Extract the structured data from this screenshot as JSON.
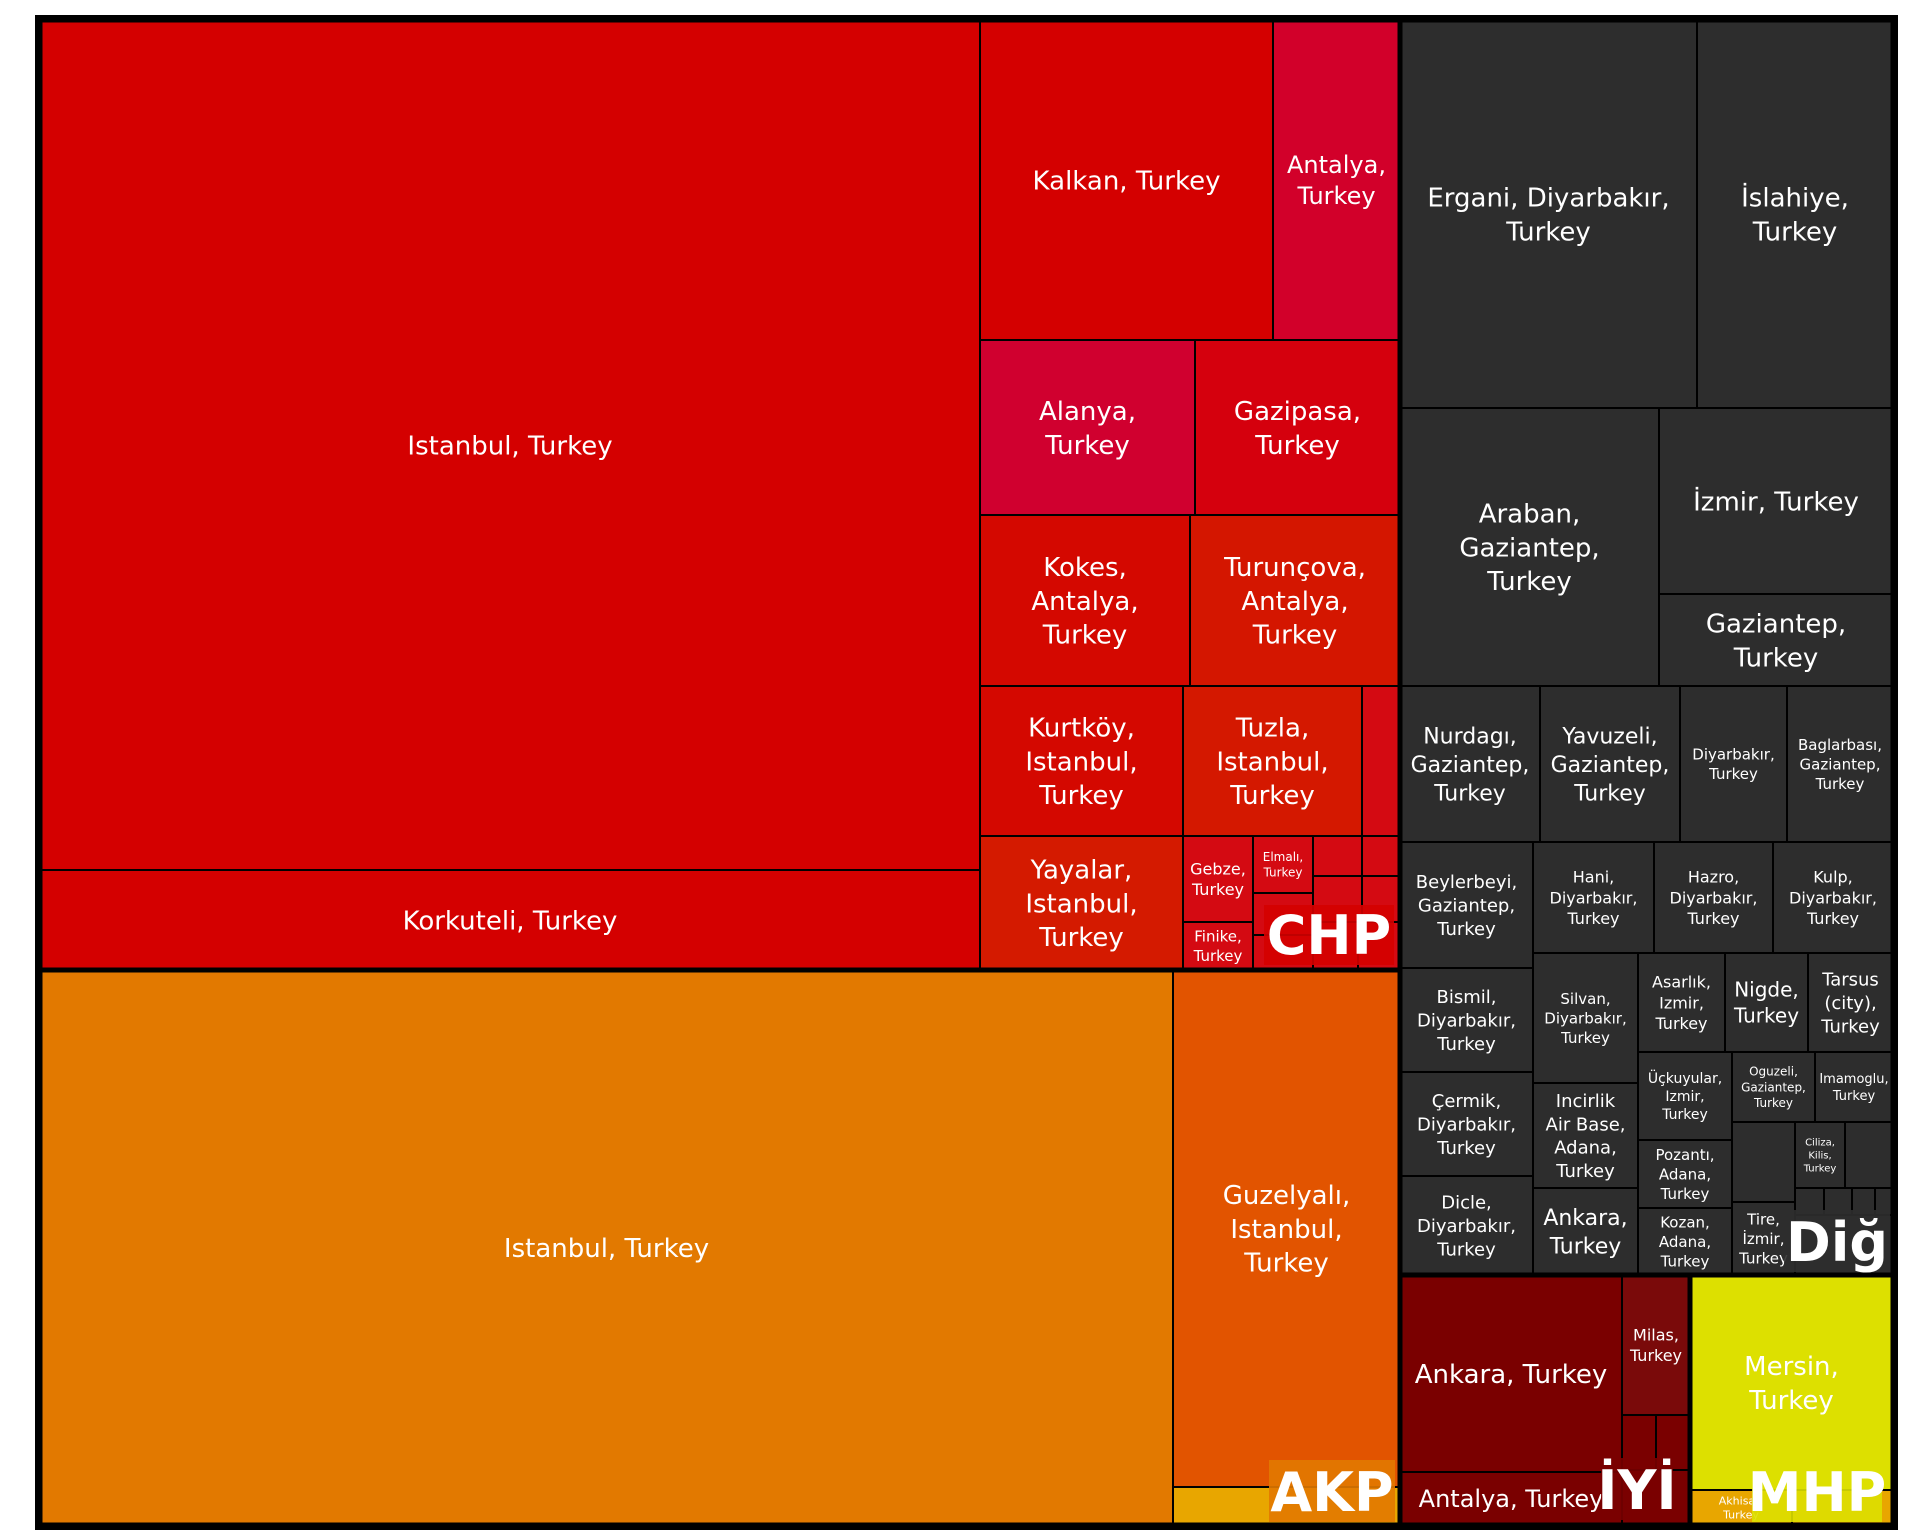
{
  "chart_data": {
    "type": "treemap",
    "groups": [
      {
        "name": "CHP",
        "color": "#d40000",
        "items": [
          {
            "label": "Istanbul, Turkey",
            "value": 53000,
            "color": "#d40000"
          },
          {
            "label": "Korkuteli, Turkey",
            "value": 5500,
            "color": "#d40000"
          },
          {
            "label": "Kalkan, Turkey",
            "value": 5800,
            "color": "#d40000"
          },
          {
            "label": "Antalya, Turkey",
            "value": 2400,
            "color": "#d2002a"
          },
          {
            "label": "Alanya, Turkey",
            "value": 2300,
            "color": "#d0002f"
          },
          {
            "label": "Gazipasa, Turkey",
            "value": 2200,
            "color": "#d5000d"
          },
          {
            "label": "Kokes, Antalya, Turkey",
            "value": 2200,
            "color": "#d40800"
          },
          {
            "label": "Turunçova, Antalya, Turkey",
            "value": 2200,
            "color": "#d41600"
          },
          {
            "label": "Kurtköy, Istanbul, Turkey",
            "value": 1950,
            "color": "#d40800"
          },
          {
            "label": "Tuzla, Istanbul, Turkey",
            "value": 1800,
            "color": "#d41800"
          },
          {
            "label": "Yayalar, Istanbul, Turkey",
            "value": 1650,
            "color": "#d41a00"
          },
          {
            "label": "Gebze, Turkey",
            "value": 320,
            "color": "#d40a12"
          },
          {
            "label": "Elmalı, Turkey",
            "value": 260,
            "color": "#d40a12"
          },
          {
            "label": "Finike, Turkey",
            "value": 220,
            "color": "#d40a12"
          }
        ]
      },
      {
        "name": "AKP",
        "color": "#e27900",
        "items": [
          {
            "label": "Istanbul, Turkey",
            "value": 55000,
            "color": "#e27900"
          },
          {
            "label": "Guzelyalı, Istanbul, Turkey",
            "value": 10800,
            "color": "#e25400"
          }
        ]
      },
      {
        "name": "Diğ",
        "color": "#2d2d2d",
        "items": [
          {
            "label": "Ergani, Diyarbakır, Turkey",
            "value": 4800,
            "color": "#2d2d2d"
          },
          {
            "label": "İslahiye, Turkey",
            "value": 3500,
            "color": "#2d2d2d"
          },
          {
            "label": "Araban, Gaziantep, Turkey",
            "value": 3400,
            "color": "#2d2d2d"
          },
          {
            "label": "İzmir, Turkey",
            "value": 2500,
            "color": "#2d2d2d"
          },
          {
            "label": "Gaziantep, Turkey",
            "value": 1200,
            "color": "#2d2d2d"
          },
          {
            "label": "Nurdagı, Gaziantep, Turkey",
            "value": 1400,
            "color": "#2d2d2d"
          },
          {
            "label": "Yavuzeli, Gaziantep, Turkey",
            "value": 1400,
            "color": "#2d2d2d"
          },
          {
            "label": "Diyarbakır, Turkey",
            "value": 1100,
            "color": "#2d2d2d"
          },
          {
            "label": "Baglarbası, Gaziantep, Turkey",
            "value": 1050,
            "color": "#2d2d2d"
          },
          {
            "label": "Beylerbeyi, Gaziantep, Turkey",
            "value": 1150,
            "color": "#2d2d2d"
          },
          {
            "label": "Hani, Diyarbakır, Turkey",
            "value": 950,
            "color": "#2d2d2d"
          },
          {
            "label": "Hazro, Diyarbakır, Turkey",
            "value": 950,
            "color": "#2d2d2d"
          },
          {
            "label": "Kulp, Diyarbakır, Turkey",
            "value": 950,
            "color": "#2d2d2d"
          },
          {
            "label": "Bismil, Diyarbakır, Turkey",
            "value": 850,
            "color": "#2d2d2d"
          },
          {
            "label": "Silvan, Diyarbakır, Turkey",
            "value": 850,
            "color": "#2d2d2d"
          },
          {
            "label": "Asarlık, Izmir, Turkey",
            "value": 560,
            "color": "#2d2d2d"
          },
          {
            "label": "Nigde, Turkey",
            "value": 560,
            "color": "#2d2d2d"
          },
          {
            "label": "Tarsus (city), Turkey",
            "value": 560,
            "color": "#2d2d2d"
          },
          {
            "label": "Çermik, Diyarbakır, Turkey",
            "value": 850,
            "color": "#2d2d2d"
          },
          {
            "label": "Incirlik Air Base, Adana, Turkey",
            "value": 760,
            "color": "#2d2d2d"
          },
          {
            "label": "Üçkuyular, Izmir, Turkey",
            "value": 480,
            "color": "#2d2d2d"
          },
          {
            "label": "Oguzeli, Gaziantep, Turkey",
            "value": 430,
            "color": "#2d2d2d"
          },
          {
            "label": "Imamoglu, Turkey",
            "value": 360,
            "color": "#2d2d2d"
          },
          {
            "label": "Pozantı, Adana, Turkey",
            "value": 450,
            "color": "#2d2d2d"
          },
          {
            "label": "Ciliza, Kilis, Turkey",
            "value": 220,
            "color": "#2d2d2d"
          },
          {
            "label": "Dicle, Diyarbakır, Turkey",
            "value": 850,
            "color": "#2d2d2d"
          },
          {
            "label": "Ankara, Turkey",
            "value": 760,
            "color": "#2d2d2d"
          },
          {
            "label": "Kozan, Adana, Turkey",
            "value": 440,
            "color": "#2d2d2d"
          },
          {
            "label": "Tire, İzmir, Turkey",
            "value": 330,
            "color": "#2d2d2d"
          }
        ]
      },
      {
        "name": "İYİ",
        "color": "#7a0000",
        "items": [
          {
            "label": "Ankara, Turkey",
            "value": 3500,
            "color": "#7a0000"
          },
          {
            "label": "Antalya, Turkey",
            "value": 920,
            "color": "#7a0000"
          },
          {
            "label": "Milas, Turkey",
            "value": 680,
            "color": "#7a0a0a"
          }
        ]
      },
      {
        "name": "MHP",
        "color": "#dde000",
        "items": [
          {
            "label": "Mersin, Turkey",
            "value": 4500,
            "color": "#dde000"
          },
          {
            "label": "Akhisar, Turkey",
            "value": 300,
            "color": "#e8a600"
          }
        ]
      }
    ]
  }
}
